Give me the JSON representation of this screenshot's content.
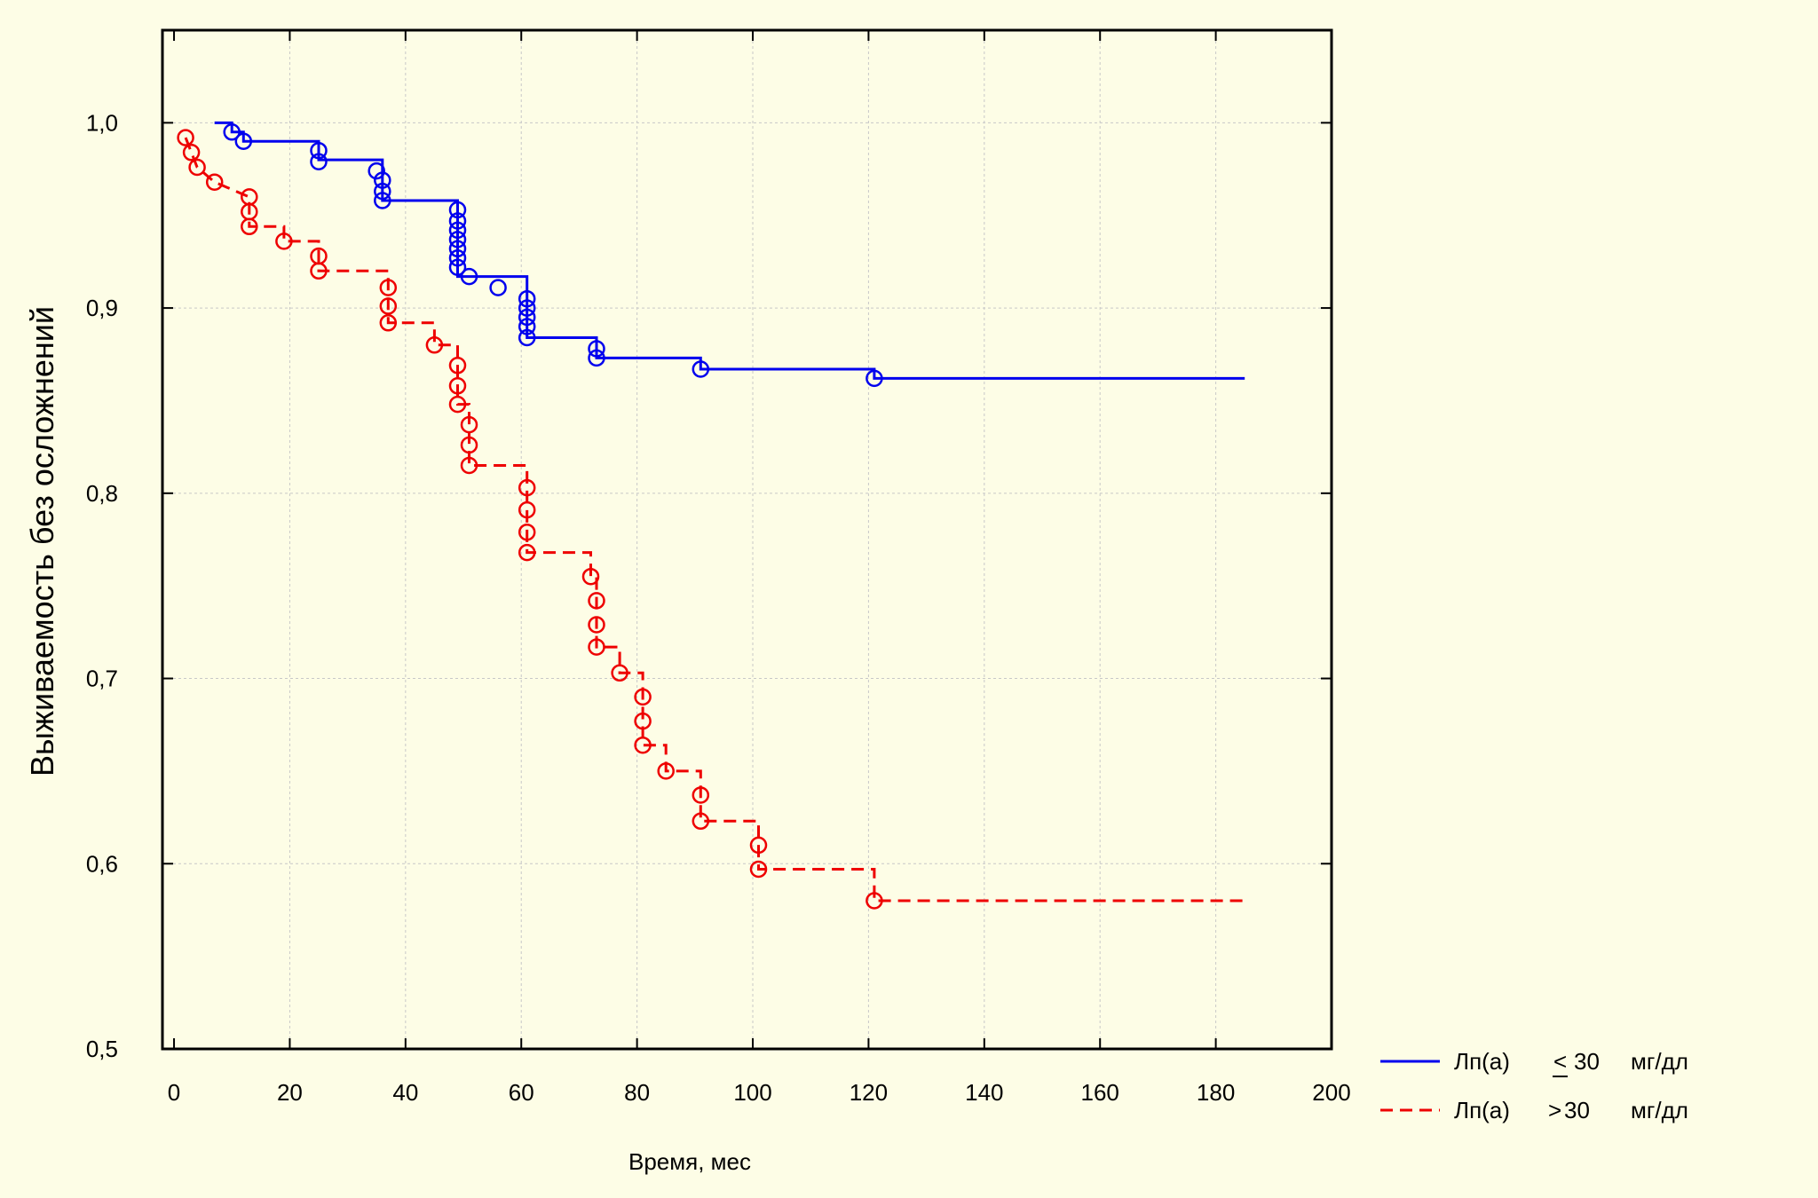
{
  "chart_data": {
    "type": "line",
    "title": "",
    "xlabel": "Время, мес",
    "ylabel": "Выживаемость без осложнений",
    "xlim": [
      -2,
      200
    ],
    "ylim": [
      0.5,
      1.05
    ],
    "x_ticks": [
      "0",
      "20",
      "40",
      "60",
      "80",
      "100",
      "120",
      "140",
      "160",
      "180",
      "200"
    ],
    "x_tick_values": [
      0,
      20,
      40,
      60,
      80,
      100,
      120,
      140,
      160,
      180,
      200
    ],
    "y_ticks": [
      "0,5",
      "0,6",
      "0,7",
      "0,8",
      "0,9",
      "1,0"
    ],
    "y_tick_values": [
      0.5,
      0.6,
      0.7,
      0.8,
      0.9,
      1.0
    ],
    "grid": true,
    "legend_position": "bottom-right-outside",
    "series": [
      {
        "label": "Лп(а)",
        "symbol": "<",
        "threshold": "30",
        "unit": "мг/дл",
        "color": "#0000ee",
        "dash": "solid",
        "step": [
          [
            7,
            1.0
          ],
          [
            10,
            1.0
          ],
          [
            10,
            0.995
          ],
          [
            12,
            0.995
          ],
          [
            12,
            0.99
          ],
          [
            25,
            0.99
          ],
          [
            25,
            0.98
          ],
          [
            36,
            0.98
          ],
          [
            36,
            0.958
          ],
          [
            49,
            0.958
          ],
          [
            49,
            0.917
          ],
          [
            61,
            0.917
          ],
          [
            61,
            0.884
          ],
          [
            73,
            0.884
          ],
          [
            73,
            0.873
          ],
          [
            91,
            0.873
          ],
          [
            91,
            0.867
          ],
          [
            121,
            0.867
          ],
          [
            121,
            0.862
          ],
          [
            185,
            0.862
          ]
        ],
        "censored": [
          [
            10,
            0.995
          ],
          [
            12,
            0.99
          ],
          [
            25,
            0.985
          ],
          [
            25,
            0.979
          ],
          [
            35,
            0.974
          ],
          [
            36,
            0.969
          ],
          [
            36,
            0.963
          ],
          [
            36,
            0.958
          ],
          [
            49,
            0.953
          ],
          [
            49,
            0.947
          ],
          [
            49,
            0.942
          ],
          [
            49,
            0.937
          ],
          [
            49,
            0.932
          ],
          [
            49,
            0.927
          ],
          [
            49,
            0.922
          ],
          [
            51,
            0.917
          ],
          [
            56,
            0.911
          ],
          [
            61,
            0.905
          ],
          [
            61,
            0.9
          ],
          [
            61,
            0.895
          ],
          [
            61,
            0.89
          ],
          [
            61,
            0.884
          ],
          [
            73,
            0.878
          ],
          [
            73,
            0.873
          ],
          [
            91,
            0.867
          ],
          [
            121,
            0.862
          ]
        ]
      },
      {
        "label": "Лп(а)",
        "symbol": ">",
        "threshold": "30",
        "unit": "мг/дл",
        "color": "#ee0000",
        "dash": "dashed",
        "step": [
          [
            2,
            0.992
          ],
          [
            3,
            0.984
          ],
          [
            4,
            0.976
          ],
          [
            7,
            0.968
          ],
          [
            13,
            0.96
          ],
          [
            13,
            0.944
          ],
          [
            19,
            0.944
          ],
          [
            19,
            0.936
          ],
          [
            25,
            0.936
          ],
          [
            25,
            0.92
          ],
          [
            37,
            0.92
          ],
          [
            37,
            0.892
          ],
          [
            45,
            0.892
          ],
          [
            45,
            0.88
          ],
          [
            49,
            0.88
          ],
          [
            49,
            0.848
          ],
          [
            51,
            0.848
          ],
          [
            51,
            0.815
          ],
          [
            61,
            0.815
          ],
          [
            61,
            0.768
          ],
          [
            72,
            0.768
          ],
          [
            72,
            0.755
          ],
          [
            73,
            0.755
          ],
          [
            73,
            0.717
          ],
          [
            77,
            0.717
          ],
          [
            77,
            0.703
          ],
          [
            81,
            0.703
          ],
          [
            81,
            0.664
          ],
          [
            85,
            0.664
          ],
          [
            85,
            0.65
          ],
          [
            91,
            0.65
          ],
          [
            91,
            0.623
          ],
          [
            101,
            0.623
          ],
          [
            101,
            0.597
          ],
          [
            121,
            0.597
          ],
          [
            121,
            0.58
          ],
          [
            185,
            0.58
          ]
        ],
        "censored": [
          [
            2,
            0.992
          ],
          [
            3,
            0.984
          ],
          [
            4,
            0.976
          ],
          [
            7,
            0.968
          ],
          [
            13,
            0.96
          ],
          [
            13,
            0.952
          ],
          [
            13,
            0.944
          ],
          [
            19,
            0.936
          ],
          [
            25,
            0.928
          ],
          [
            25,
            0.92
          ],
          [
            37,
            0.911
          ],
          [
            37,
            0.901
          ],
          [
            37,
            0.892
          ],
          [
            45,
            0.88
          ],
          [
            49,
            0.869
          ],
          [
            49,
            0.858
          ],
          [
            49,
            0.848
          ],
          [
            51,
            0.837
          ],
          [
            51,
            0.826
          ],
          [
            51,
            0.815
          ],
          [
            61,
            0.803
          ],
          [
            61,
            0.791
          ],
          [
            61,
            0.779
          ],
          [
            61,
            0.768
          ],
          [
            72,
            0.755
          ],
          [
            73,
            0.742
          ],
          [
            73,
            0.729
          ],
          [
            73,
            0.717
          ],
          [
            77,
            0.703
          ],
          [
            81,
            0.69
          ],
          [
            81,
            0.677
          ],
          [
            81,
            0.664
          ],
          [
            85,
            0.65
          ],
          [
            91,
            0.637
          ],
          [
            91,
            0.623
          ],
          [
            101,
            0.61
          ],
          [
            101,
            0.597
          ],
          [
            121,
            0.58
          ]
        ]
      }
    ]
  }
}
